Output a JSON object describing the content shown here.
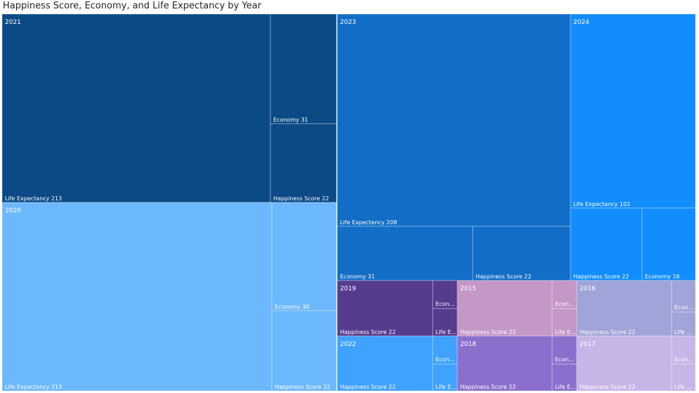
{
  "chart_data": {
    "type": "treemap",
    "title": "Happiness Score, Economy, and Life Expectancy by Year",
    "groups": [
      {
        "year": "2021",
        "color": "#0b4a85",
        "children": [
          {
            "label": "Life Expectancy 213",
            "short": "Life Expectancy 213",
            "value": 213
          },
          {
            "label": "Economy 31",
            "short": "Economy 31",
            "value": 31
          },
          {
            "label": "Happiness Score 22",
            "short": "Happiness Score 22",
            "value": 22
          }
        ]
      },
      {
        "year": "2020",
        "color": "#6cb8fc",
        "children": [
          {
            "label": "Life Expectancy 213",
            "short": "Life Expectancy 213",
            "value": 213
          },
          {
            "label": "Economy 30",
            "short": "Economy 30",
            "value": 30
          },
          {
            "label": "Happiness Score 22",
            "short": "Happiness Score 22",
            "value": 22
          }
        ]
      },
      {
        "year": "2023",
        "color": "#126dc6",
        "children": [
          {
            "label": "Life Expectancy 208",
            "short": "Life Expectancy 208",
            "value": 208
          },
          {
            "label": "Economy 31",
            "short": "Economy 31",
            "value": 31
          },
          {
            "label": "Happiness Score 22",
            "short": "Happiness Score 22",
            "value": 22
          }
        ]
      },
      {
        "year": "2024",
        "color": "#118dfe",
        "children": [
          {
            "label": "Life Expectancy 102",
            "short": "Life Expectancy 102",
            "value": 102
          },
          {
            "label": "Happiness Score 22",
            "short": "Happiness Score 22",
            "value": 22
          },
          {
            "label": "Economy 16",
            "short": "Economy 16",
            "value": 16
          }
        ]
      },
      {
        "year": "2019",
        "color": "#563b8f",
        "children": [
          {
            "label": "Happiness Score 22",
            "short": "Happiness Score 22",
            "value": 22
          },
          {
            "label": "Economy",
            "short": "Econ...",
            "value": null
          },
          {
            "label": "Life Expectancy",
            "short": "Life E...",
            "value": null
          }
        ]
      },
      {
        "year": "2015",
        "color": "#c497c7",
        "children": [
          {
            "label": "Happiness Score 22",
            "short": "Happiness Score 22",
            "value": 22
          },
          {
            "label": "Economy",
            "short": "Econ...",
            "value": null
          },
          {
            "label": "Life Expectancy",
            "short": "Life E...",
            "value": null
          }
        ]
      },
      {
        "year": "2016",
        "color": "#a1a4d8",
        "children": [
          {
            "label": "Happiness Score 22",
            "short": "Happiness Score 22",
            "value": 22
          },
          {
            "label": "Economy",
            "short": "Econ...",
            "value": null
          },
          {
            "label": "Life Expectancy",
            "short": "Life ...",
            "value": null
          }
        ]
      },
      {
        "year": "2022",
        "color": "#3fa2ff",
        "children": [
          {
            "label": "Happiness Score 22",
            "short": "Happiness Score 22",
            "value": 22
          },
          {
            "label": "Economy",
            "short": "Econ...",
            "value": null
          },
          {
            "label": "Life Expectancy",
            "short": "Life E...",
            "value": null
          }
        ]
      },
      {
        "year": "2018",
        "color": "#8c6fcd",
        "children": [
          {
            "label": "Happiness Score 22",
            "short": "Happiness Score 22",
            "value": 22
          },
          {
            "label": "Economy",
            "short": "Econ...",
            "value": null
          },
          {
            "label": "Life Expectancy",
            "short": "Life E...",
            "value": null
          }
        ]
      },
      {
        "year": "2017",
        "color": "#c8b5e7",
        "children": [
          {
            "label": "Happiness Score 22",
            "short": "Happiness Score 22",
            "value": 22
          },
          {
            "label": "Economy",
            "short": "Econ...",
            "value": null
          },
          {
            "label": "Life Expectancy",
            "short": "Life ...",
            "value": null
          }
        ]
      }
    ]
  }
}
